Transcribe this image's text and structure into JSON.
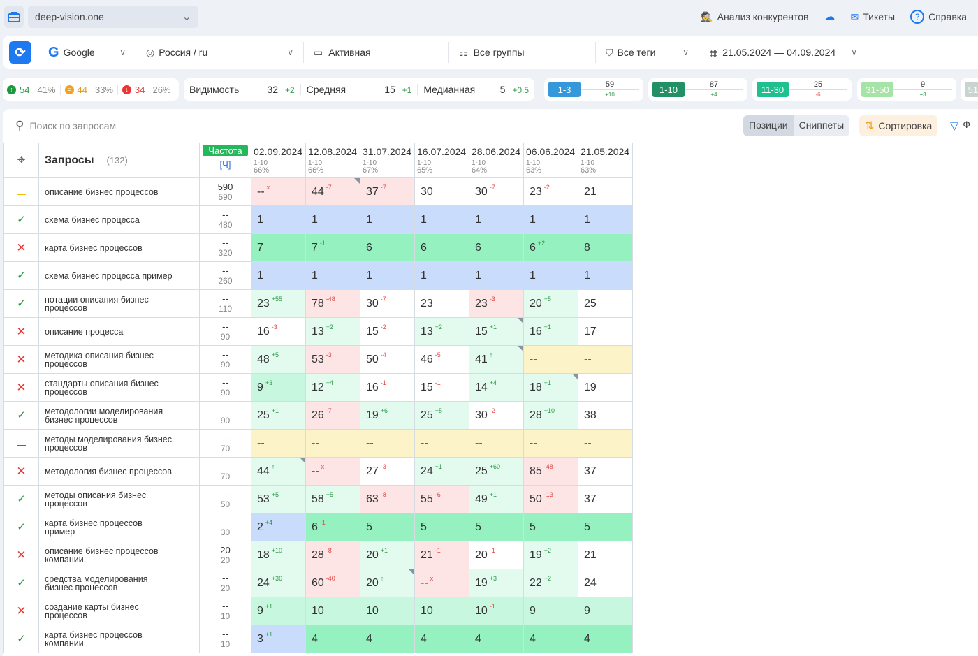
{
  "topbar": {
    "project": "deep-vision.one",
    "links": [
      "Анализ конкурентов",
      "Тикеты",
      "Справка"
    ]
  },
  "filters": {
    "engine": "Google",
    "region": "Россия / ru",
    "status": "Активная",
    "groups": "Все группы",
    "tags": "Все теги",
    "dates": "21.05.2024 — 04.09.2024"
  },
  "summary": {
    "up": "54",
    "up_pct": "41%",
    "same": "44",
    "same_pct": "33%",
    "down": "34",
    "down_pct": "26%"
  },
  "metrics": [
    {
      "label": "Видимость",
      "value": "32",
      "delta": "+2"
    },
    {
      "label": "Средняя",
      "value": "15",
      "delta": "+1"
    },
    {
      "label": "Медианная",
      "value": "5",
      "delta": "+0.5"
    }
  ],
  "buckets": [
    {
      "label": "1-3",
      "value": "59",
      "delta": "+10",
      "color": "#3498db"
    },
    {
      "label": "1-10",
      "value": "87",
      "delta": "+4",
      "color": "#229065"
    },
    {
      "label": "11-30",
      "value": "25",
      "delta": "-6",
      "color": "#1fbf8f"
    },
    {
      "label": "31-50",
      "value": "9",
      "delta": "+3",
      "color": "#a6e3a6"
    },
    {
      "label": "51-",
      "value": "",
      "delta": "",
      "color": "#c8d4d0"
    }
  ],
  "toolbar": {
    "search_placeholder": "Поиск по запросам",
    "positions": "Позиции",
    "snippets": "Сниппеты",
    "sort": "Сортировка",
    "filter": "Ф"
  },
  "table": {
    "queries_label": "Запросы",
    "queries_count": "(132)",
    "freq_label": "Частота",
    "freq_sub": "[Ч]",
    "dates": [
      {
        "date": "02.09.2024",
        "range": "1-10",
        "pct": "66%"
      },
      {
        "date": "12.08.2024",
        "range": "1-10",
        "pct": "66%"
      },
      {
        "date": "31.07.2024",
        "range": "1-10",
        "pct": "67%"
      },
      {
        "date": "16.07.2024",
        "range": "1-10",
        "pct": "65%"
      },
      {
        "date": "28.06.2024",
        "range": "1-10",
        "pct": "64%"
      },
      {
        "date": "06.06.2024",
        "range": "1-10",
        "pct": "63%"
      },
      {
        "date": "21.05.2024",
        "range": "1-10",
        "pct": "63%"
      }
    ],
    "rows": [
      {
        "status": "same",
        "query": "описание бизнес процессов",
        "f1": "590",
        "f2": "590",
        "cells": [
          [
            "--",
            "x",
            "p",
            0
          ],
          [
            "44",
            "-7",
            "p",
            1
          ],
          [
            "37",
            "-7",
            "p",
            0
          ],
          [
            "30",
            "",
            "w",
            0
          ],
          [
            "30",
            "-7",
            "w",
            0
          ],
          [
            "23",
            "-2",
            "w",
            0
          ],
          [
            "21",
            "",
            "w",
            0
          ]
        ]
      },
      {
        "status": "up",
        "query": "схема бизнес процесса",
        "f1": "--",
        "f2": "480",
        "cells": [
          [
            "1",
            "",
            "b",
            0
          ],
          [
            "1",
            "",
            "b",
            0
          ],
          [
            "1",
            "",
            "b",
            0
          ],
          [
            "1",
            "",
            "b",
            0
          ],
          [
            "1",
            "",
            "b",
            0
          ],
          [
            "1",
            "",
            "b",
            0
          ],
          [
            "1",
            "",
            "b",
            0
          ]
        ]
      },
      {
        "status": "down",
        "query": "карта бизнес процессов",
        "f1": "--",
        "f2": "320",
        "cells": [
          [
            "7",
            "",
            "g",
            0
          ],
          [
            "7",
            "-1",
            "g",
            0
          ],
          [
            "6",
            "",
            "g",
            0
          ],
          [
            "6",
            "",
            "g",
            0
          ],
          [
            "6",
            "",
            "g",
            0
          ],
          [
            "6",
            "+2",
            "g",
            0
          ],
          [
            "8",
            "",
            "g",
            0
          ]
        ]
      },
      {
        "status": "up",
        "query": "схема бизнес процесса пример",
        "f1": "--",
        "f2": "260",
        "cells": [
          [
            "1",
            "",
            "b",
            0
          ],
          [
            "1",
            "",
            "b",
            0
          ],
          [
            "1",
            "",
            "b",
            0
          ],
          [
            "1",
            "",
            "b",
            0
          ],
          [
            "1",
            "",
            "b",
            0
          ],
          [
            "1",
            "",
            "b",
            0
          ],
          [
            "1",
            "",
            "b",
            0
          ]
        ]
      },
      {
        "status": "up",
        "query": "нотации описания бизнес процессов",
        "f1": "--",
        "f2": "110",
        "cells": [
          [
            "23",
            "+55",
            "lg",
            0
          ],
          [
            "78",
            "-48",
            "p",
            0
          ],
          [
            "30",
            "-7",
            "w",
            0
          ],
          [
            "23",
            "",
            "w",
            0
          ],
          [
            "23",
            "-3",
            "p",
            0
          ],
          [
            "20",
            "+5",
            "lg",
            0
          ],
          [
            "25",
            "",
            "w",
            0
          ]
        ]
      },
      {
        "status": "down",
        "query": "описание процесса",
        "f1": "--",
        "f2": "90",
        "cells": [
          [
            "16",
            "-3",
            "w",
            0
          ],
          [
            "13",
            "+2",
            "lg",
            0
          ],
          [
            "15",
            "-2",
            "w",
            0
          ],
          [
            "13",
            "+2",
            "lg",
            0
          ],
          [
            "15",
            "+1",
            "lg",
            1
          ],
          [
            "16",
            "+1",
            "lg",
            0
          ],
          [
            "17",
            "",
            "w",
            0
          ]
        ]
      },
      {
        "status": "down",
        "query": "методика описания бизнес процессов",
        "f1": "--",
        "f2": "90",
        "cells": [
          [
            "48",
            "+5",
            "lg",
            0
          ],
          [
            "53",
            "-3",
            "p",
            0
          ],
          [
            "50",
            "-4",
            "w",
            0
          ],
          [
            "46",
            "-5",
            "w",
            0
          ],
          [
            "41",
            "↑",
            "lg",
            1
          ],
          [
            "--",
            "",
            "y",
            0
          ],
          [
            "--",
            "",
            "y",
            0
          ]
        ]
      },
      {
        "status": "down",
        "query": "стандарты описания бизнес процессов",
        "f1": "--",
        "f2": "90",
        "cells": [
          [
            "9",
            "+3",
            "m",
            0
          ],
          [
            "12",
            "+4",
            "lg",
            0
          ],
          [
            "16",
            "-1",
            "w",
            0
          ],
          [
            "15",
            "-1",
            "w",
            0
          ],
          [
            "14",
            "+4",
            "lg",
            0
          ],
          [
            "18",
            "+1",
            "lg",
            1
          ],
          [
            "19",
            "",
            "w",
            0
          ]
        ]
      },
      {
        "status": "up",
        "query": "методологии моделирования бизнес процессов",
        "f1": "--",
        "f2": "90",
        "cells": [
          [
            "25",
            "+1",
            "lg",
            0
          ],
          [
            "26",
            "-7",
            "p",
            0
          ],
          [
            "19",
            "+6",
            "lg",
            0
          ],
          [
            "25",
            "+5",
            "lg",
            0
          ],
          [
            "30",
            "-2",
            "w",
            0
          ],
          [
            "28",
            "+10",
            "lg",
            0
          ],
          [
            "38",
            "",
            "w",
            0
          ]
        ]
      },
      {
        "status": "none",
        "query": "методы моделирования бизнес процессов",
        "f1": "--",
        "f2": "70",
        "cells": [
          [
            "--",
            "",
            "y",
            0
          ],
          [
            "--",
            "",
            "y",
            0
          ],
          [
            "--",
            "",
            "y",
            0
          ],
          [
            "--",
            "",
            "y",
            0
          ],
          [
            "--",
            "",
            "y",
            0
          ],
          [
            "--",
            "",
            "y",
            0
          ],
          [
            "--",
            "",
            "y",
            0
          ]
        ]
      },
      {
        "status": "down",
        "query": "методология бизнес процессов",
        "f1": "--",
        "f2": "70",
        "cells": [
          [
            "44",
            "↑",
            "lg",
            1
          ],
          [
            "--",
            "x",
            "p",
            0
          ],
          [
            "27",
            "-3",
            "w",
            0
          ],
          [
            "24",
            "+1",
            "lg",
            0
          ],
          [
            "25",
            "+60",
            "lg",
            0
          ],
          [
            "85",
            "-48",
            "p",
            0
          ],
          [
            "37",
            "",
            "w",
            0
          ]
        ]
      },
      {
        "status": "up",
        "query": "методы описания бизнес процессов",
        "f1": "--",
        "f2": "50",
        "cells": [
          [
            "53",
            "+5",
            "lg",
            0
          ],
          [
            "58",
            "+5",
            "lg",
            0
          ],
          [
            "63",
            "-8",
            "p",
            0
          ],
          [
            "55",
            "-6",
            "p",
            0
          ],
          [
            "49",
            "+1",
            "lg",
            0
          ],
          [
            "50",
            "-13",
            "p",
            0
          ],
          [
            "37",
            "",
            "w",
            0
          ]
        ]
      },
      {
        "status": "up",
        "query": "карта бизнес процессов пример",
        "f1": "--",
        "f2": "30",
        "cells": [
          [
            "2",
            "+4",
            "b",
            0
          ],
          [
            "6",
            "-1",
            "g",
            0
          ],
          [
            "5",
            "",
            "g",
            0
          ],
          [
            "5",
            "",
            "g",
            0
          ],
          [
            "5",
            "",
            "g",
            0
          ],
          [
            "5",
            "",
            "g",
            0
          ],
          [
            "5",
            "",
            "g",
            0
          ]
        ]
      },
      {
        "status": "down",
        "query": "описание бизнес процессов компании",
        "f1": "20",
        "f2": "20",
        "cells": [
          [
            "18",
            "+10",
            "lg",
            0
          ],
          [
            "28",
            "-8",
            "p",
            0
          ],
          [
            "20",
            "+1",
            "lg",
            0
          ],
          [
            "21",
            "-1",
            "p",
            0
          ],
          [
            "20",
            "-1",
            "w",
            0
          ],
          [
            "19",
            "+2",
            "lg",
            0
          ],
          [
            "21",
            "",
            "w",
            0
          ]
        ]
      },
      {
        "status": "up",
        "query": "средства моделирования бизнес процессов",
        "f1": "--",
        "f2": "20",
        "cells": [
          [
            "24",
            "+36",
            "lg",
            0
          ],
          [
            "60",
            "-40",
            "p",
            0
          ],
          [
            "20",
            "↑",
            "lg",
            1
          ],
          [
            "--",
            "x",
            "p",
            0
          ],
          [
            "19",
            "+3",
            "lg",
            0
          ],
          [
            "22",
            "+2",
            "lg",
            0
          ],
          [
            "24",
            "",
            "w",
            0
          ]
        ]
      },
      {
        "status": "down",
        "query": "создание карты бизнес процессов",
        "f1": "--",
        "f2": "10",
        "cells": [
          [
            "9",
            "+1",
            "m",
            0
          ],
          [
            "10",
            "",
            "m",
            0
          ],
          [
            "10",
            "",
            "m",
            0
          ],
          [
            "10",
            "",
            "m",
            0
          ],
          [
            "10",
            "-1",
            "m",
            0
          ],
          [
            "9",
            "",
            "m",
            0
          ],
          [
            "9",
            "",
            "m",
            0
          ]
        ]
      },
      {
        "status": "up",
        "query": "карта бизнес процессов компании",
        "f1": "--",
        "f2": "10",
        "cells": [
          [
            "3",
            "+1",
            "b",
            0
          ],
          [
            "4",
            "",
            "g",
            0
          ],
          [
            "4",
            "",
            "g",
            0
          ],
          [
            "4",
            "",
            "g",
            0
          ],
          [
            "4",
            "",
            "g",
            0
          ],
          [
            "4",
            "",
            "g",
            0
          ],
          [
            "4",
            "",
            "g",
            0
          ]
        ]
      }
    ]
  }
}
